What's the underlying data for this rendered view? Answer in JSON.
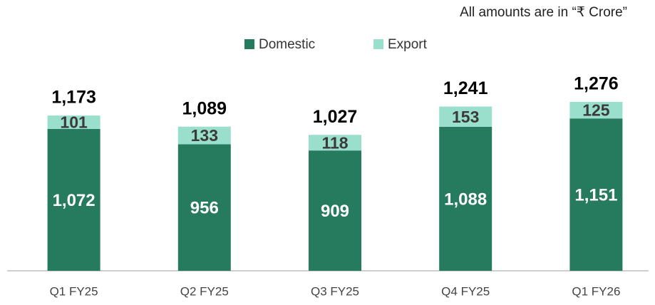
{
  "chart_data": {
    "type": "stacked_bar",
    "note": "All amounts are in “₹ Crore”",
    "categories": [
      "Q1 FY25",
      "Q2 FY25",
      "Q3 FY25",
      "Q4 FY25",
      "Q1 FY26"
    ],
    "series": [
      {
        "name": "Domestic",
        "color": "#267b5e",
        "values": [
          1072,
          956,
          909,
          1088,
          1151
        ],
        "value_labels": [
          "1,072",
          "956",
          "909",
          "1,088",
          "1,151"
        ]
      },
      {
        "name": "Export",
        "color": "#99dfcb",
        "values": [
          101,
          133,
          118,
          153,
          125
        ]
      }
    ],
    "totals": [
      1173,
      1089,
      1027,
      1241,
      1276
    ],
    "total_labels": [
      "1,173",
      "1,089",
      "1,027",
      "1,241",
      "1,276"
    ],
    "legend": "top"
  }
}
